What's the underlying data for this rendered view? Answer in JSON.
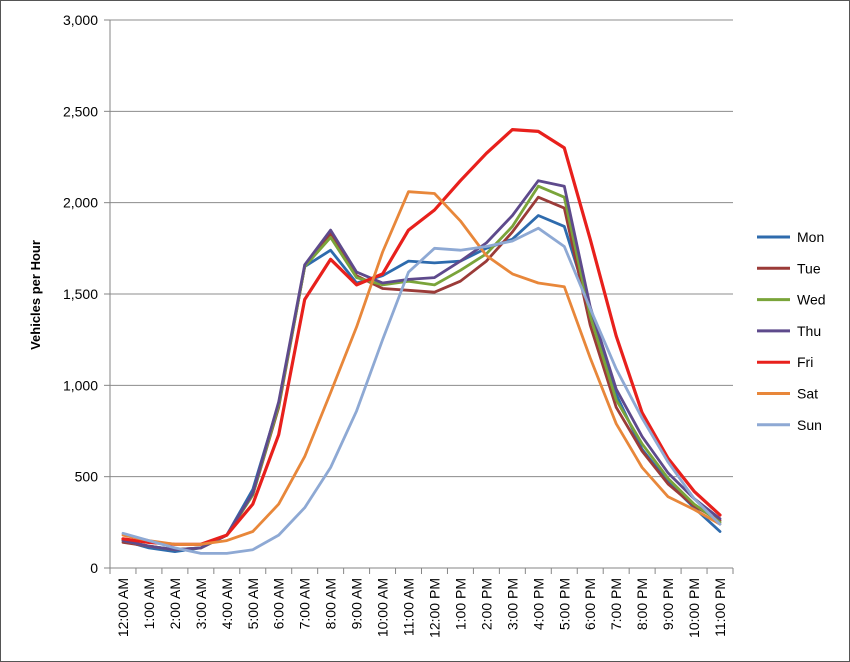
{
  "chart_data": {
    "type": "line",
    "title": "",
    "xlabel": "",
    "ylabel": "Vehicles per Hour",
    "ylim": [
      0,
      3000
    ],
    "yticks": [
      0,
      500,
      1000,
      1500,
      2000,
      2500,
      3000
    ],
    "ytick_labels": [
      "0",
      "500",
      "1,000",
      "1,500",
      "2,000",
      "2,500",
      "3,000"
    ],
    "grid": "horizontal",
    "legend": "right",
    "categories": [
      "12:00 AM",
      "1:00 AM",
      "2:00 AM",
      "3:00 AM",
      "4:00 AM",
      "5:00 AM",
      "6:00 AM",
      "7:00 AM",
      "8:00 AM",
      "9:00 AM",
      "10:00 AM",
      "11:00 AM",
      "12:00 PM",
      "1:00 PM",
      "2:00 PM",
      "3:00 PM",
      "4:00 PM",
      "5:00 PM",
      "6:00 PM",
      "7:00 PM",
      "8:00 PM",
      "9:00 PM",
      "10:00 PM",
      "11:00 PM"
    ],
    "x_positions": [
      0.5,
      1.5,
      2.5,
      3.5,
      4.5,
      5.5,
      6.5,
      7.5,
      8.5,
      9.5,
      10.5,
      11.5,
      12.5,
      13.5,
      14.5,
      15.5,
      16.5,
      17.5,
      18.5,
      19.5,
      20.5,
      21.5,
      22.5,
      23.5
    ],
    "series": [
      {
        "name": "Mon",
        "color": "#2e6bad",
        "values": [
          [
            0,
            150
          ],
          [
            1,
            110
          ],
          [
            2,
            90
          ],
          [
            3,
            110
          ],
          [
            4,
            180
          ],
          [
            5,
            430
          ],
          [
            6,
            900
          ],
          [
            7,
            1650
          ],
          [
            8,
            1740
          ],
          [
            9,
            1560
          ],
          [
            10,
            1600
          ],
          [
            11,
            1680
          ],
          [
            12,
            1670
          ],
          [
            13,
            1680
          ],
          [
            14,
            1750
          ],
          [
            15,
            1800
          ],
          [
            16,
            1930
          ],
          [
            17,
            1870
          ],
          [
            18,
            1420
          ],
          [
            19,
            950
          ],
          [
            20,
            650
          ],
          [
            21,
            470
          ],
          [
            22,
            330
          ],
          [
            23,
            200
          ]
        ]
      },
      {
        "name": "Tue",
        "color": "#9b3b38",
        "values": [
          [
            0,
            140
          ],
          [
            1,
            120
          ],
          [
            2,
            100
          ],
          [
            3,
            110
          ],
          [
            4,
            180
          ],
          [
            5,
            400
          ],
          [
            6,
            880
          ],
          [
            7,
            1650
          ],
          [
            8,
            1830
          ],
          [
            9,
            1600
          ],
          [
            10,
            1530
          ],
          [
            11,
            1520
          ],
          [
            12,
            1510
          ],
          [
            13,
            1570
          ],
          [
            14,
            1680
          ],
          [
            15,
            1840
          ],
          [
            16,
            2030
          ],
          [
            17,
            1970
          ],
          [
            18,
            1330
          ],
          [
            19,
            880
          ],
          [
            20,
            640
          ],
          [
            21,
            460
          ],
          [
            22,
            340
          ],
          [
            23,
            260
          ]
        ]
      },
      {
        "name": "Wed",
        "color": "#7aa43a",
        "values": [
          [
            0,
            150
          ],
          [
            1,
            120
          ],
          [
            2,
            100
          ],
          [
            3,
            110
          ],
          [
            4,
            180
          ],
          [
            5,
            400
          ],
          [
            6,
            890
          ],
          [
            7,
            1650
          ],
          [
            8,
            1810
          ],
          [
            9,
            1590
          ],
          [
            10,
            1550
          ],
          [
            11,
            1570
          ],
          [
            12,
            1550
          ],
          [
            13,
            1630
          ],
          [
            14,
            1720
          ],
          [
            15,
            1870
          ],
          [
            16,
            2090
          ],
          [
            17,
            2030
          ],
          [
            18,
            1380
          ],
          [
            19,
            920
          ],
          [
            20,
            680
          ],
          [
            21,
            490
          ],
          [
            22,
            350
          ],
          [
            23,
            250
          ]
        ]
      },
      {
        "name": "Thu",
        "color": "#5e4a8c",
        "values": [
          [
            0,
            150
          ],
          [
            1,
            120
          ],
          [
            2,
            100
          ],
          [
            3,
            110
          ],
          [
            4,
            180
          ],
          [
            5,
            410
          ],
          [
            6,
            910
          ],
          [
            7,
            1660
          ],
          [
            8,
            1850
          ],
          [
            9,
            1620
          ],
          [
            10,
            1560
          ],
          [
            11,
            1580
          ],
          [
            12,
            1590
          ],
          [
            13,
            1680
          ],
          [
            14,
            1780
          ],
          [
            15,
            1930
          ],
          [
            16,
            2120
          ],
          [
            17,
            2090
          ],
          [
            18,
            1430
          ],
          [
            19,
            980
          ],
          [
            20,
            720
          ],
          [
            21,
            520
          ],
          [
            22,
            380
          ],
          [
            23,
            270
          ]
        ]
      },
      {
        "name": "Fri",
        "color": "#e8201c",
        "values": [
          [
            0,
            160
          ],
          [
            1,
            140
          ],
          [
            2,
            130
          ],
          [
            3,
            130
          ],
          [
            4,
            180
          ],
          [
            5,
            350
          ],
          [
            6,
            730
          ],
          [
            7,
            1470
          ],
          [
            8,
            1690
          ],
          [
            9,
            1550
          ],
          [
            10,
            1610
          ],
          [
            11,
            1850
          ],
          [
            12,
            1960
          ],
          [
            13,
            2120
          ],
          [
            14,
            2270
          ],
          [
            15,
            2400
          ],
          [
            16,
            2390
          ],
          [
            17,
            2300
          ],
          [
            18,
            1800
          ],
          [
            19,
            1270
          ],
          [
            20,
            850
          ],
          [
            21,
            600
          ],
          [
            22,
            420
          ],
          [
            23,
            290
          ]
        ]
      },
      {
        "name": "Sat",
        "color": "#e8873a",
        "values": [
          [
            0,
            180
          ],
          [
            1,
            150
          ],
          [
            2,
            130
          ],
          [
            3,
            130
          ],
          [
            4,
            150
          ],
          [
            5,
            200
          ],
          [
            6,
            350
          ],
          [
            7,
            610
          ],
          [
            8,
            960
          ],
          [
            9,
            1320
          ],
          [
            10,
            1730
          ],
          [
            11,
            2060
          ],
          [
            12,
            2050
          ],
          [
            13,
            1900
          ],
          [
            14,
            1710
          ],
          [
            15,
            1610
          ],
          [
            16,
            1560
          ],
          [
            17,
            1540
          ],
          [
            18,
            1150
          ],
          [
            19,
            790
          ],
          [
            20,
            550
          ],
          [
            21,
            390
          ],
          [
            22,
            320
          ],
          [
            23,
            240
          ]
        ]
      },
      {
        "name": "Sun",
        "color": "#8ea9d4",
        "values": [
          [
            0,
            190
          ],
          [
            1,
            150
          ],
          [
            2,
            110
          ],
          [
            3,
            80
          ],
          [
            4,
            80
          ],
          [
            5,
            100
          ],
          [
            6,
            180
          ],
          [
            7,
            330
          ],
          [
            8,
            550
          ],
          [
            9,
            860
          ],
          [
            10,
            1250
          ],
          [
            11,
            1620
          ],
          [
            12,
            1750
          ],
          [
            13,
            1740
          ],
          [
            14,
            1760
          ],
          [
            15,
            1790
          ],
          [
            16,
            1860
          ],
          [
            17,
            1760
          ],
          [
            18,
            1420
          ],
          [
            19,
            1090
          ],
          [
            20,
            820
          ],
          [
            21,
            580
          ],
          [
            22,
            380
          ],
          [
            23,
            240
          ]
        ]
      }
    ]
  }
}
